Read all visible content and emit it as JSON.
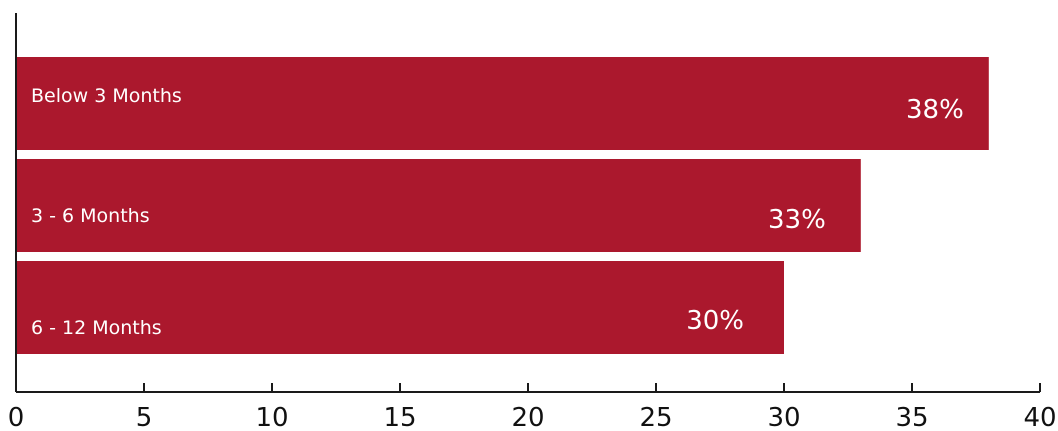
{
  "chart_data": {
    "type": "bar",
    "orientation": "horizontal",
    "title": "",
    "xlabel": "",
    "ylabel": "",
    "categories": [
      "Below 3 Months",
      "3 - 6 Months",
      "6 - 12 Months"
    ],
    "values": [
      38,
      33,
      30
    ],
    "value_labels": [
      "38%",
      "33%",
      "30%"
    ],
    "xlim": [
      0,
      40
    ],
    "xticks": [
      "0",
      "5",
      "10",
      "15",
      "20",
      "25",
      "30",
      "35",
      "40"
    ],
    "grid": false,
    "legend": "none",
    "colors": {
      "bar": "#AB182D",
      "axis": "#1a1a1a",
      "label": "#ffffff"
    }
  }
}
